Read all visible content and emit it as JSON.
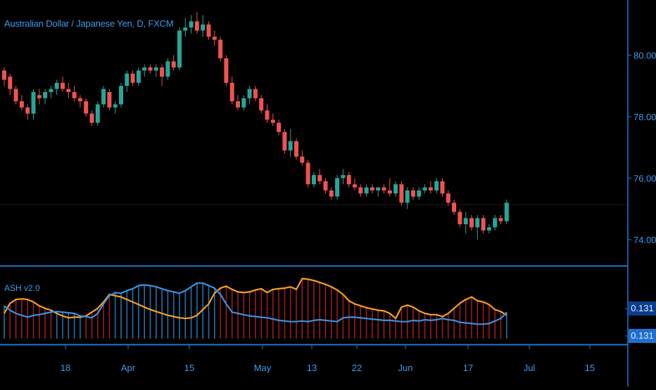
{
  "title": "Australian Dollar / Japanese Yen, D, FXCM",
  "indicator_title": "ASH v2.0",
  "indicator_badges": [
    "0.131",
    "0.131"
  ],
  "colors": {
    "background": "#000000",
    "up": "#26a69a",
    "down": "#ef5350",
    "axis": "#1f78d1",
    "text": "#3d9be9",
    "bull_line": "#3a8fe0",
    "bear_line": "#f4a023",
    "bull_hist": "#2a6ea8",
    "bear_hist": "#9b1c1c"
  },
  "chart_data": [
    {
      "type": "candlestick",
      "title": "Australian Dollar / Japanese Yen, D, FXCM",
      "y_ticks": [
        "80.000",
        "78.000",
        "76.000",
        "74.000"
      ],
      "x_ticks": [
        "18",
        "Apr",
        "15",
        "May",
        "13",
        "22",
        "Jun",
        "17",
        "Jul",
        "15"
      ],
      "ylim": [
        73.3,
        81.7
      ],
      "ohlc": [
        [
          79.5,
          79.6,
          79.0,
          79.2
        ],
        [
          79.3,
          79.4,
          78.7,
          78.9
        ],
        [
          78.9,
          79.0,
          78.4,
          78.5
        ],
        [
          78.5,
          78.7,
          78.2,
          78.3
        ],
        [
          78.3,
          78.4,
          77.9,
          78.1
        ],
        [
          78.1,
          78.9,
          77.9,
          78.8
        ],
        [
          78.7,
          78.9,
          78.4,
          78.6
        ],
        [
          78.6,
          78.9,
          78.4,
          78.8
        ],
        [
          78.8,
          79.0,
          78.6,
          78.9
        ],
        [
          78.9,
          79.2,
          78.7,
          79.1
        ],
        [
          79.1,
          79.3,
          78.8,
          78.9
        ],
        [
          78.9,
          79.1,
          78.6,
          78.8
        ],
        [
          78.8,
          79.0,
          78.5,
          78.6
        ],
        [
          78.6,
          78.7,
          78.3,
          78.5
        ],
        [
          78.5,
          78.6,
          78.0,
          78.1
        ],
        [
          78.1,
          78.2,
          77.7,
          77.8
        ],
        [
          77.8,
          78.5,
          77.7,
          78.4
        ],
        [
          78.4,
          79.0,
          78.3,
          78.9
        ],
        [
          78.8,
          78.9,
          78.2,
          78.3
        ],
        [
          78.3,
          78.5,
          78.1,
          78.4
        ],
        [
          78.4,
          79.1,
          78.3,
          79.0
        ],
        [
          79.0,
          79.5,
          78.8,
          79.4
        ],
        [
          79.4,
          79.5,
          79.0,
          79.1
        ],
        [
          79.1,
          79.6,
          79.0,
          79.5
        ],
        [
          79.5,
          79.7,
          79.3,
          79.6
        ],
        [
          79.6,
          79.7,
          79.4,
          79.5
        ],
        [
          79.5,
          79.7,
          79.3,
          79.6
        ],
        [
          79.6,
          79.7,
          79.0,
          79.3
        ],
        [
          79.3,
          79.9,
          79.2,
          79.8
        ],
        [
          79.8,
          80.0,
          79.5,
          79.6
        ],
        [
          79.6,
          80.9,
          79.5,
          80.8
        ],
        [
          80.8,
          81.2,
          80.6,
          80.9
        ],
        [
          80.9,
          81.3,
          80.7,
          81.1
        ],
        [
          81.1,
          81.4,
          80.7,
          80.8
        ],
        [
          80.8,
          81.3,
          80.6,
          81.0
        ],
        [
          81.0,
          81.1,
          80.5,
          80.6
        ],
        [
          80.6,
          80.8,
          80.3,
          80.5
        ],
        [
          80.5,
          80.6,
          79.8,
          79.9
        ],
        [
          79.9,
          80.0,
          79.0,
          79.1
        ],
        [
          79.1,
          79.3,
          78.4,
          78.5
        ],
        [
          78.5,
          78.7,
          78.2,
          78.3
        ],
        [
          78.3,
          78.7,
          78.2,
          78.6
        ],
        [
          78.6,
          79.0,
          78.4,
          78.9
        ],
        [
          78.9,
          79.0,
          78.5,
          78.6
        ],
        [
          78.6,
          78.7,
          78.1,
          78.2
        ],
        [
          78.2,
          78.4,
          77.8,
          77.9
        ],
        [
          77.9,
          78.1,
          77.7,
          77.8
        ],
        [
          77.8,
          77.9,
          77.4,
          77.5
        ],
        [
          77.5,
          77.6,
          76.8,
          76.9
        ],
        [
          76.9,
          77.6,
          76.7,
          77.2
        ],
        [
          77.2,
          77.3,
          76.6,
          76.7
        ],
        [
          76.7,
          76.9,
          76.4,
          76.5
        ],
        [
          76.5,
          76.6,
          75.7,
          75.8
        ],
        [
          75.8,
          76.2,
          75.7,
          76.1
        ],
        [
          76.1,
          76.3,
          75.8,
          75.9
        ],
        [
          75.9,
          76.0,
          75.5,
          75.6
        ],
        [
          75.6,
          75.7,
          75.3,
          75.4
        ],
        [
          75.4,
          76.1,
          75.3,
          76.0
        ],
        [
          76.0,
          76.3,
          75.8,
          76.1
        ],
        [
          76.1,
          76.2,
          75.7,
          75.8
        ],
        [
          75.8,
          76.0,
          75.6,
          75.7
        ],
        [
          75.7,
          75.8,
          75.4,
          75.5
        ],
        [
          75.5,
          75.8,
          75.4,
          75.7
        ],
        [
          75.7,
          75.8,
          75.5,
          75.6
        ],
        [
          75.6,
          75.7,
          75.4,
          75.7
        ],
        [
          75.7,
          75.8,
          75.5,
          75.6
        ],
        [
          75.6,
          76.0,
          75.4,
          75.5
        ],
        [
          75.5,
          75.9,
          75.4,
          75.8
        ],
        [
          75.8,
          75.9,
          75.1,
          75.2
        ],
        [
          75.2,
          75.7,
          75.0,
          75.6
        ],
        [
          75.6,
          75.7,
          75.3,
          75.4
        ],
        [
          75.4,
          75.7,
          75.3,
          75.6
        ],
        [
          75.6,
          75.8,
          75.5,
          75.7
        ],
        [
          75.7,
          75.9,
          75.5,
          75.6
        ],
        [
          75.6,
          76.0,
          75.5,
          75.9
        ],
        [
          75.9,
          76.0,
          75.4,
          75.5
        ],
        [
          75.5,
          75.6,
          75.1,
          75.2
        ],
        [
          75.2,
          75.3,
          74.8,
          74.9
        ],
        [
          74.9,
          75.0,
          74.4,
          74.5
        ],
        [
          74.5,
          74.9,
          74.2,
          74.7
        ],
        [
          74.7,
          74.8,
          74.3,
          74.4
        ],
        [
          74.4,
          74.8,
          74.0,
          74.7
        ],
        [
          74.7,
          74.8,
          74.2,
          74.3
        ],
        [
          74.3,
          74.5,
          74.2,
          74.4
        ],
        [
          74.4,
          74.8,
          74.3,
          74.7
        ],
        [
          74.7,
          74.8,
          74.5,
          74.6
        ],
        [
          74.6,
          75.3,
          74.5,
          75.2
        ]
      ]
    },
    {
      "type": "line",
      "title": "ASH v2.0",
      "ylim": [
        0,
        1
      ],
      "series": [
        {
          "values": [
            0.52,
            0.45,
            0.4,
            0.37,
            0.34,
            0.37,
            0.38,
            0.4,
            0.42,
            0.43,
            0.42,
            0.41,
            0.4,
            0.36,
            0.35,
            0.33,
            0.4,
            0.55,
            0.68,
            0.73,
            0.72,
            0.76,
            0.79,
            0.84,
            0.85,
            0.84,
            0.82,
            0.79,
            0.76,
            0.74,
            0.72,
            0.76,
            0.82,
            0.88,
            0.88,
            0.84,
            0.8,
            0.7,
            0.55,
            0.42,
            0.4,
            0.38,
            0.36,
            0.35,
            0.34,
            0.33,
            0.31,
            0.29,
            0.28,
            0.27,
            0.27,
            0.28,
            0.27,
            0.29,
            0.3,
            0.29,
            0.28,
            0.27,
            0.33,
            0.34,
            0.34,
            0.33,
            0.32,
            0.31,
            0.3,
            0.29,
            0.29,
            0.28,
            0.27,
            0.27,
            0.29,
            0.28,
            0.3,
            0.29,
            0.3,
            0.32,
            0.3,
            0.29,
            0.26,
            0.25,
            0.24,
            0.23,
            0.23,
            0.24,
            0.28,
            0.32,
            0.42
          ]
        },
        {
          "values": [
            0.4,
            0.56,
            0.62,
            0.63,
            0.62,
            0.58,
            0.52,
            0.48,
            0.45,
            0.4,
            0.36,
            0.33,
            0.34,
            0.34,
            0.36,
            0.42,
            0.48,
            0.58,
            0.7,
            0.68,
            0.66,
            0.62,
            0.58,
            0.54,
            0.5,
            0.46,
            0.43,
            0.4,
            0.37,
            0.35,
            0.33,
            0.32,
            0.33,
            0.37,
            0.46,
            0.55,
            0.72,
            0.8,
            0.83,
            0.78,
            0.74,
            0.73,
            0.74,
            0.77,
            0.79,
            0.73,
            0.78,
            0.79,
            0.8,
            0.82,
            0.78,
            0.95,
            0.94,
            0.92,
            0.89,
            0.86,
            0.82,
            0.77,
            0.7,
            0.6,
            0.55,
            0.52,
            0.49,
            0.47,
            0.45,
            0.44,
            0.4,
            0.32,
            0.5,
            0.53,
            0.5,
            0.44,
            0.4,
            0.38,
            0.38,
            0.35,
            0.4,
            0.48,
            0.56,
            0.62,
            0.66,
            0.6,
            0.58,
            0.54,
            0.46,
            0.43,
            0.37
          ]
        }
      ]
    }
  ]
}
